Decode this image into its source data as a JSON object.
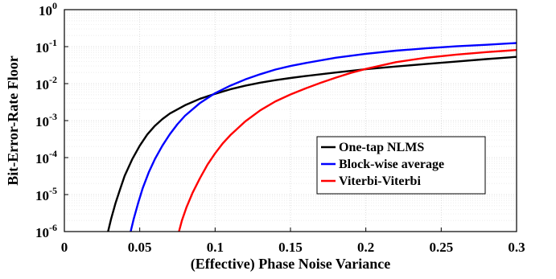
{
  "chart_data": {
    "type": "line",
    "title": "",
    "xlabel": "(Effective) Phase Noise Variance",
    "ylabel": "Bit-Error-Rate Floor",
    "xlim": [
      0,
      0.3
    ],
    "ylim": [
      1e-06,
      1
    ],
    "yscale": "log",
    "grid": true,
    "legend_position": "bottom-right",
    "x_ticks": [
      0,
      0.05,
      0.1,
      0.15,
      0.2,
      0.25,
      0.3
    ],
    "x_tick_labels": [
      "0",
      "0.05",
      "0.1",
      "0.15",
      "0.2",
      "0.25",
      "0.3"
    ],
    "y_ticks": [
      {
        "value": 1e-06,
        "base": "10",
        "exp": "-6"
      },
      {
        "value": 1e-05,
        "base": "10",
        "exp": "-5"
      },
      {
        "value": 0.0001,
        "base": "10",
        "exp": "-4"
      },
      {
        "value": 0.001,
        "base": "10",
        "exp": "-3"
      },
      {
        "value": 0.01,
        "base": "10",
        "exp": "-2"
      },
      {
        "value": 0.1,
        "base": "10",
        "exp": "-1"
      },
      {
        "value": 1,
        "base": "10",
        "exp": "0"
      }
    ],
    "series": [
      {
        "name": "One-tap NLMS",
        "color": "#000000",
        "x": [
          0.029,
          0.031,
          0.034,
          0.037,
          0.04,
          0.045,
          0.05,
          0.055,
          0.06,
          0.065,
          0.07,
          0.08,
          0.09,
          0.1,
          0.11,
          0.12,
          0.13,
          0.14,
          0.15,
          0.16,
          0.18,
          0.2,
          0.22,
          0.24,
          0.26,
          0.28,
          0.3
        ],
        "y": [
          1e-06,
          2.2e-06,
          6e-06,
          1.4e-05,
          3.2e-05,
          9e-05,
          0.00021,
          0.00042,
          0.00072,
          0.0011,
          0.00155,
          0.0026,
          0.0039,
          0.0053,
          0.007,
          0.0088,
          0.0106,
          0.0124,
          0.0142,
          0.016,
          0.02,
          0.0245,
          0.029,
          0.034,
          0.0395,
          0.046,
          0.053
        ]
      },
      {
        "name": "Block-wise average",
        "color": "#0000ff",
        "x": [
          0.044,
          0.046,
          0.049,
          0.052,
          0.056,
          0.06,
          0.065,
          0.07,
          0.075,
          0.08,
          0.09,
          0.1,
          0.11,
          0.12,
          0.13,
          0.14,
          0.15,
          0.16,
          0.18,
          0.2,
          0.22,
          0.24,
          0.26,
          0.28,
          0.3
        ],
        "y": [
          1e-06,
          2.2e-06,
          6e-06,
          1.5e-05,
          4e-05,
          9e-05,
          0.00021,
          0.00043,
          0.0008,
          0.00135,
          0.003,
          0.0055,
          0.0088,
          0.013,
          0.018,
          0.024,
          0.03,
          0.036,
          0.05,
          0.064,
          0.078,
          0.09,
          0.102,
          0.112,
          0.125
        ]
      },
      {
        "name": "Viterbi-Viterbi",
        "color": "#ff0000",
        "x": [
          0.076,
          0.078,
          0.081,
          0.085,
          0.09,
          0.095,
          0.1,
          0.105,
          0.11,
          0.12,
          0.13,
          0.14,
          0.15,
          0.16,
          0.17,
          0.18,
          0.19,
          0.2,
          0.22,
          0.24,
          0.26,
          0.28,
          0.3
        ],
        "y": [
          1e-06,
          2e-06,
          4.5e-06,
          1.1e-05,
          2.8e-05,
          6.5e-05,
          0.00013,
          0.00024,
          0.0004,
          0.00095,
          0.0019,
          0.0033,
          0.0051,
          0.0074,
          0.0105,
          0.0145,
          0.0195,
          0.025,
          0.038,
          0.05,
          0.061,
          0.071,
          0.081
        ]
      }
    ]
  }
}
